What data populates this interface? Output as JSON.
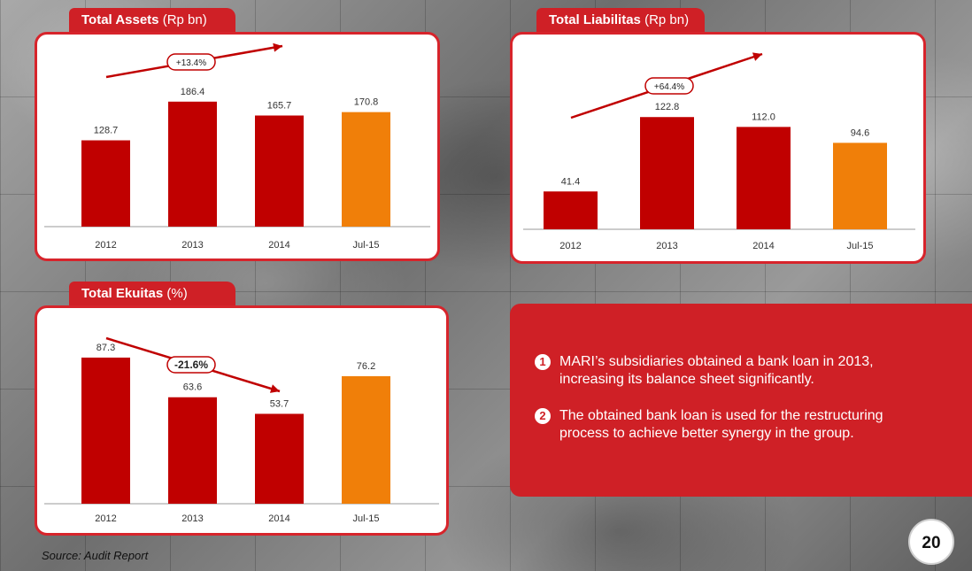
{
  "charts": {
    "assets": {
      "title_bold": "Total Assets",
      "title_unit": " (Rp bn)",
      "change_label": "+13.4%"
    },
    "liabilities": {
      "title_bold": "Total Liabilitas",
      "title_unit": " (Rp bn)",
      "change_label": "+64.4%"
    },
    "equity": {
      "title_bold": "Total Ekuitas",
      "title_unit": " (%)",
      "change_label": "-21.6%"
    }
  },
  "chart_data": [
    {
      "type": "bar",
      "title": "Total Assets (Rp bn)",
      "categories": [
        "2012",
        "2013",
        "2014",
        "Jul-15"
      ],
      "values": [
        128.7,
        186.4,
        165.7,
        170.8
      ],
      "value_labels": [
        "128.7",
        "186.4",
        "165.7",
        "170.8"
      ],
      "annotation": "+13.4%",
      "trend": "up",
      "ylim": [
        0,
        235
      ],
      "grid": false,
      "legend": "none"
    },
    {
      "type": "bar",
      "title": "Total Liabilitas (Rp bn)",
      "categories": [
        "2012",
        "2013",
        "2014",
        "Jul-15"
      ],
      "values": [
        41.4,
        122.8,
        112.0,
        94.6
      ],
      "value_labels": [
        "41.4",
        "122.8",
        "112.0",
        "94.6"
      ],
      "annotation": "+64.4%",
      "trend": "up",
      "ylim": [
        0,
        155
      ],
      "grid": false,
      "legend": "none"
    },
    {
      "type": "bar",
      "title": "Total Ekuitas (%)",
      "categories": [
        "2012",
        "2013",
        "2014",
        "Jul-15"
      ],
      "values": [
        87.3,
        63.6,
        53.7,
        76.2
      ],
      "value_labels": [
        "87.3",
        "63.6",
        "53.7",
        "76.2"
      ],
      "annotation": "-21.6%",
      "trend": "down",
      "ylim": [
        0,
        110
      ],
      "grid": false,
      "legend": "none"
    }
  ],
  "colors": {
    "bar": "#c00000",
    "bar_highlight": "#f07f09",
    "accent": "#cf2026"
  },
  "notes": [
    {
      "number": "1",
      "text": "MARI’s subsidiaries obtained a bank loan in 2013, increasing its balance sheet significantly."
    },
    {
      "number": "2",
      "text": "The obtained bank loan is used for the restructuring process to achieve better synergy in the group."
    }
  ],
  "footer": {
    "source": "Source: Audit Report",
    "page_number": "20"
  }
}
